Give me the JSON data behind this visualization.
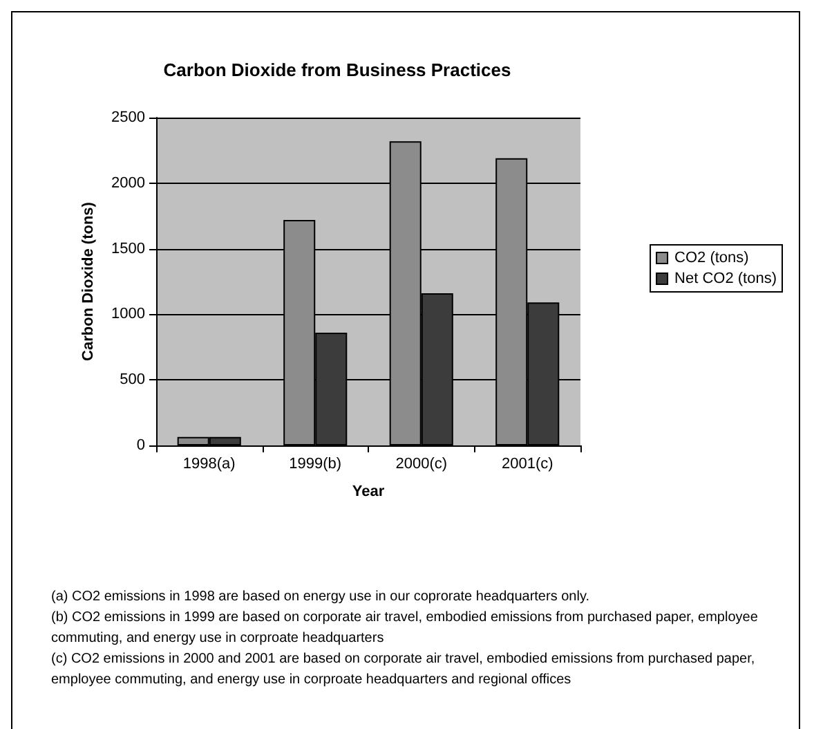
{
  "chart_data": {
    "type": "bar",
    "title": "Carbon Dioxide from Business Practices",
    "xlabel": "Year",
    "ylabel": "Carbon Dioxide (tons)",
    "categories": [
      "1998(a)",
      "1999(b)",
      "2000(c)",
      "2001(c)"
    ],
    "series": [
      {
        "name": "CO2 (tons)",
        "color": "#8c8c8c",
        "values": [
          65,
          1720,
          2320,
          2190
        ]
      },
      {
        "name": "Net CO2 (tons)",
        "color": "#3c3c3c",
        "values": [
          65,
          860,
          1160,
          1090
        ]
      }
    ],
    "ylim": [
      0,
      2500
    ],
    "yticks": [
      0,
      500,
      1000,
      1500,
      2000,
      2500
    ],
    "grid": "y",
    "legend": "right",
    "annotations": [
      "(a) CO2 emissions in 1998 are based on energy use in our coprorate headquarters only.",
      "(b) CO2 emissions in 1999 are based on corporate air travel, embodied emissions from purchased paper, employee commuting, and energy use in corproate headquarters",
      "(c) CO2 emissions in 2000 and 2001 are based on corporate air travel, embodied emissions from purchased paper, employee commuting, and energy use in corproate headquarters and regional offices"
    ]
  }
}
